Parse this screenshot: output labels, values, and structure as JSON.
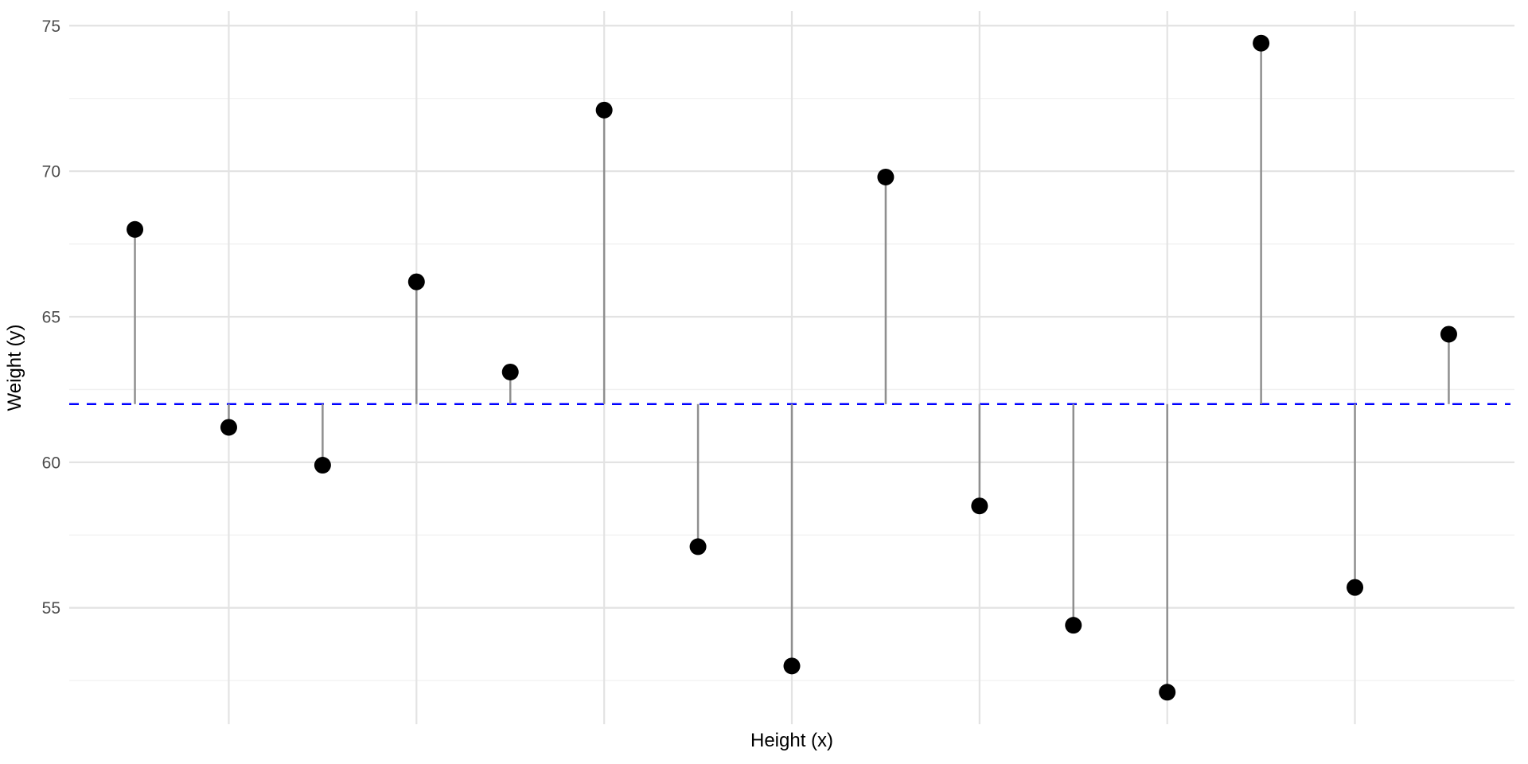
{
  "figure": {
    "background": "#FFFFFF"
  },
  "chart_data": {
    "type": "scatter",
    "subtype": "lollipop-residuals-around-mean",
    "title": "",
    "xlabel": "Height (x)",
    "ylabel": "Weight (y)",
    "x": [
      1,
      2,
      3,
      4,
      5,
      6,
      7,
      8,
      9,
      10,
      11,
      12,
      13,
      14,
      15
    ],
    "y": [
      68.0,
      61.2,
      59.9,
      66.2,
      63.1,
      72.1,
      57.1,
      53.0,
      69.8,
      58.5,
      54.4,
      52.1,
      74.4,
      55.7,
      64.4
    ],
    "mean_line": {
      "y": 62.0,
      "color": "#0000FF",
      "style": "dashed"
    },
    "segments": {
      "from": "each point",
      "to": "mean line",
      "color": "#8F8F8F"
    },
    "point_style": {
      "color": "#000000",
      "radius": 10.5
    },
    "y_ticks": [
      55,
      60,
      65,
      70,
      75
    ],
    "y_minor_gridlines": [
      52.5,
      57.5,
      62.5,
      67.5,
      72.5
    ],
    "x_gridlines": [
      2,
      4,
      6,
      8,
      10,
      12,
      14
    ],
    "x_tick_labels": [],
    "ylim": [
      51.0,
      75.5
    ],
    "xlim": [
      0.3,
      15.7
    ],
    "grid": true,
    "legend": false,
    "grid_major_color": "#E3E3E3",
    "grid_minor_color": "#F0F0F0",
    "tick_label_color": "#4D4D4D",
    "axis_title_color": "#000000"
  }
}
